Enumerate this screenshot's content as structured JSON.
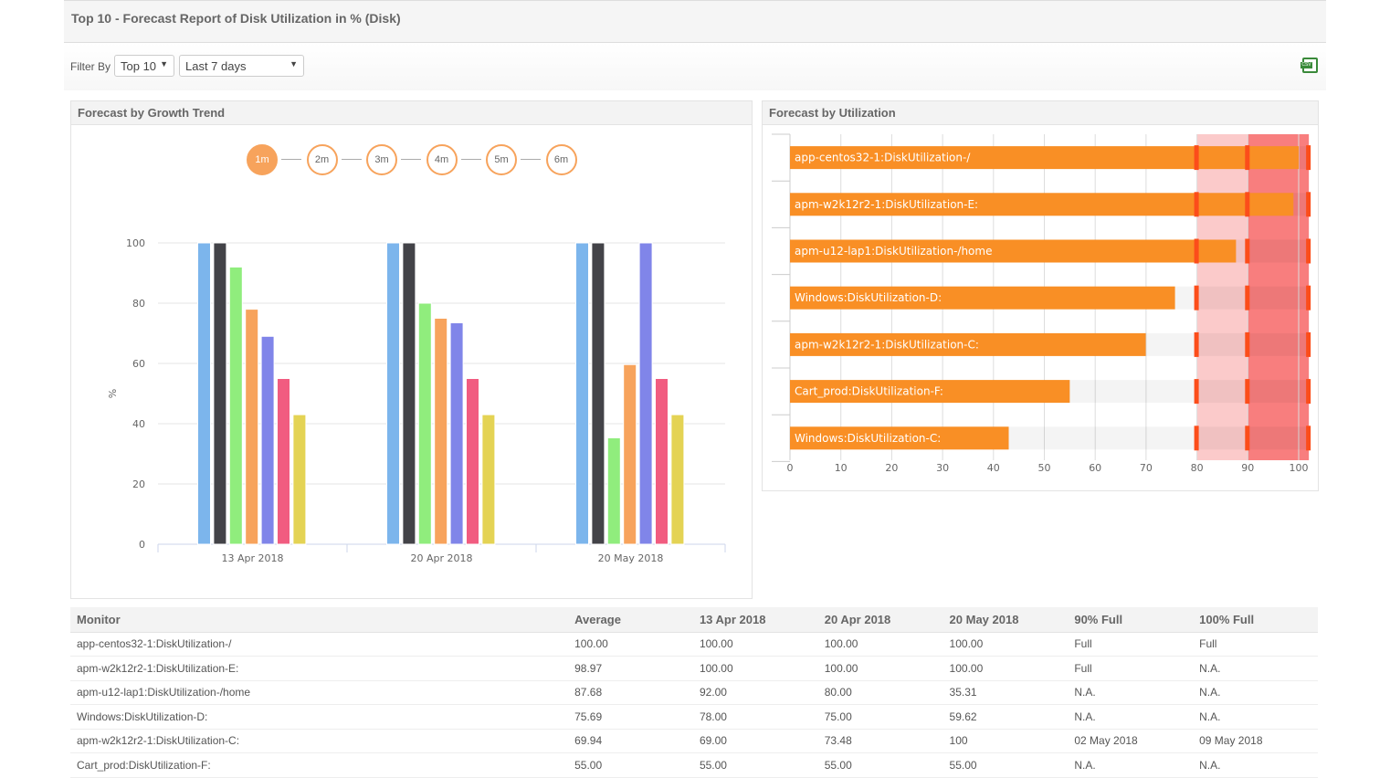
{
  "title": "Top 10 - Forecast Report of Disk Utilization in % (Disk)",
  "filter": {
    "label": "Filter By",
    "top": "Top 10",
    "period": "Last 7 days"
  },
  "export_icon": "csv-icon",
  "growth_panel": {
    "title": "Forecast by Growth Trend",
    "steps": [
      "1m",
      "2m",
      "3m",
      "4m",
      "5m",
      "6m"
    ],
    "active_step": "1m"
  },
  "util_panel": {
    "title": "Forecast by Utilization"
  },
  "chart_data": [
    {
      "type": "bar",
      "categories": [
        "13 Apr 2018",
        "20 Apr 2018",
        "20 May 2018"
      ],
      "ylabel": "%",
      "ylim": [
        0,
        100
      ],
      "yticks": [
        0,
        20,
        40,
        60,
        80,
        100
      ],
      "grid": true,
      "colors": [
        "#7cb5ec",
        "#434348",
        "#90ed7d",
        "#f7a35c",
        "#8085e9",
        "#f15c80",
        "#e4d354"
      ],
      "series": [
        {
          "values": [
            100,
            100,
            100
          ]
        },
        {
          "values": [
            100,
            100,
            100
          ]
        },
        {
          "values": [
            92,
            80,
            35.31
          ]
        },
        {
          "values": [
            78,
            75,
            59.62
          ]
        },
        {
          "values": [
            69,
            73.48,
            100
          ]
        },
        {
          "values": [
            55,
            55,
            55
          ]
        },
        {
          "values": [
            43,
            43,
            43
          ]
        }
      ]
    },
    {
      "type": "bar",
      "orientation": "horizontal",
      "categories": [
        "app-centos32-1:DiskUtilization-/",
        "apm-w2k12r2-1:DiskUtilization-E:",
        "apm-u12-lap1:DiskUtilization-/home",
        "Windows:DiskUtilization-D:",
        "apm-w2k12r2-1:DiskUtilization-C:",
        "Cart_prod:DiskUtilization-F:",
        "Windows:DiskUtilization-C:"
      ],
      "values": [
        100,
        98.97,
        87.68,
        75.69,
        69.94,
        55,
        43
      ],
      "xlim": [
        0,
        102
      ],
      "xticks": [
        0,
        10,
        20,
        30,
        40,
        50,
        60,
        70,
        80,
        90,
        100
      ],
      "bands": [
        {
          "from": 80,
          "to": 90,
          "color": "#fbcaca"
        },
        {
          "from": 90,
          "to": 102,
          "color": "#f87e7e"
        }
      ],
      "thresholds": [
        80,
        90,
        102
      ],
      "bar_color": "#f98f25",
      "threshold_color": "#fc4d1a",
      "grid": true
    }
  ],
  "table": {
    "headers": [
      "Monitor",
      "Average",
      "13 Apr 2018",
      "20 Apr 2018",
      "20 May 2018",
      "90% Full",
      "100% Full"
    ],
    "rows": [
      [
        "app-centos32-1:DiskUtilization-/",
        "100.00",
        "100.00",
        "100.00",
        "100.00",
        "Full",
        "Full"
      ],
      [
        "apm-w2k12r2-1:DiskUtilization-E:",
        "98.97",
        "100.00",
        "100.00",
        "100.00",
        "Full",
        "N.A."
      ],
      [
        "apm-u12-lap1:DiskUtilization-/home",
        "87.68",
        "92.00",
        "80.00",
        "35.31",
        "N.A.",
        "N.A."
      ],
      [
        "Windows:DiskUtilization-D:",
        "75.69",
        "78.00",
        "75.00",
        "59.62",
        "N.A.",
        "N.A."
      ],
      [
        "apm-w2k12r2-1:DiskUtilization-C:",
        "69.94",
        "69.00",
        "73.48",
        "100",
        "02 May 2018",
        "09 May 2018"
      ],
      [
        "Cart_prod:DiskUtilization-F:",
        "55.00",
        "55.00",
        "55.00",
        "55.00",
        "N.A.",
        "N.A."
      ]
    ]
  }
}
